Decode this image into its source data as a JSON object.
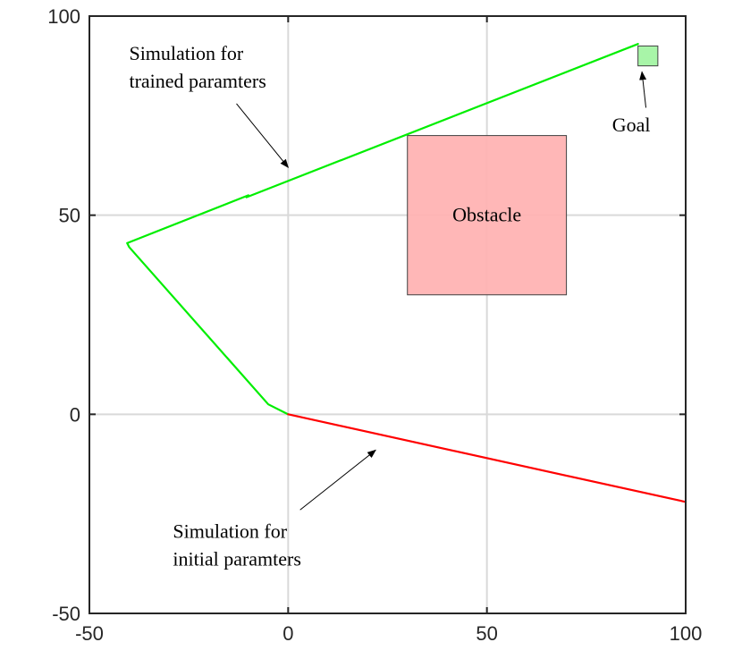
{
  "chart_data": {
    "type": "line",
    "title": "",
    "xlabel": "",
    "ylabel": "",
    "xlim": [
      -50,
      100
    ],
    "ylim": [
      -50,
      100
    ],
    "grid": true,
    "xticks": [
      -50,
      0,
      50,
      100
    ],
    "yticks": [
      -50,
      0,
      50,
      100
    ],
    "xtick_labels": [
      "-50",
      "0",
      "50",
      "100"
    ],
    "ytick_labels": [
      "-50",
      "0",
      "50",
      "100"
    ],
    "series": [
      {
        "color": "#00ee00",
        "x": [
          0,
          -5,
          -40,
          -40.5,
          -10,
          -10.5,
          88
        ],
        "y": [
          0,
          2.5,
          42,
          43,
          55,
          54.5,
          93
        ]
      },
      {
        "color": "#ff0000",
        "x": [
          0,
          100
        ],
        "y": [
          0,
          -22
        ]
      }
    ],
    "obstacle": {
      "label": "Obstacle",
      "x": [
        30,
        70
      ],
      "y": [
        30,
        70
      ],
      "color": "#ffb3b3"
    },
    "goal": {
      "label": "Goal",
      "x": [
        88,
        93
      ],
      "y": [
        87.5,
        92.5
      ],
      "color": "#a8f5a8"
    },
    "annotations": [
      {
        "text": [
          "Simulation for",
          "trained paramters"
        ],
        "text_at": [
          -40,
          89
        ],
        "arrow_from": [
          -13,
          78
        ],
        "arrow_to": [
          0,
          62
        ]
      },
      {
        "text": [
          "Simulation for",
          "initial paramters"
        ],
        "text_at": [
          -29,
          -31
        ],
        "arrow_from": [
          3,
          -24
        ],
        "arrow_to": [
          22,
          -9
        ]
      },
      {
        "text": [
          "Goal"
        ],
        "text_at": [
          81.5,
          71
        ],
        "arrow_from": [
          90,
          77
        ],
        "arrow_to": [
          89,
          86
        ]
      }
    ]
  }
}
